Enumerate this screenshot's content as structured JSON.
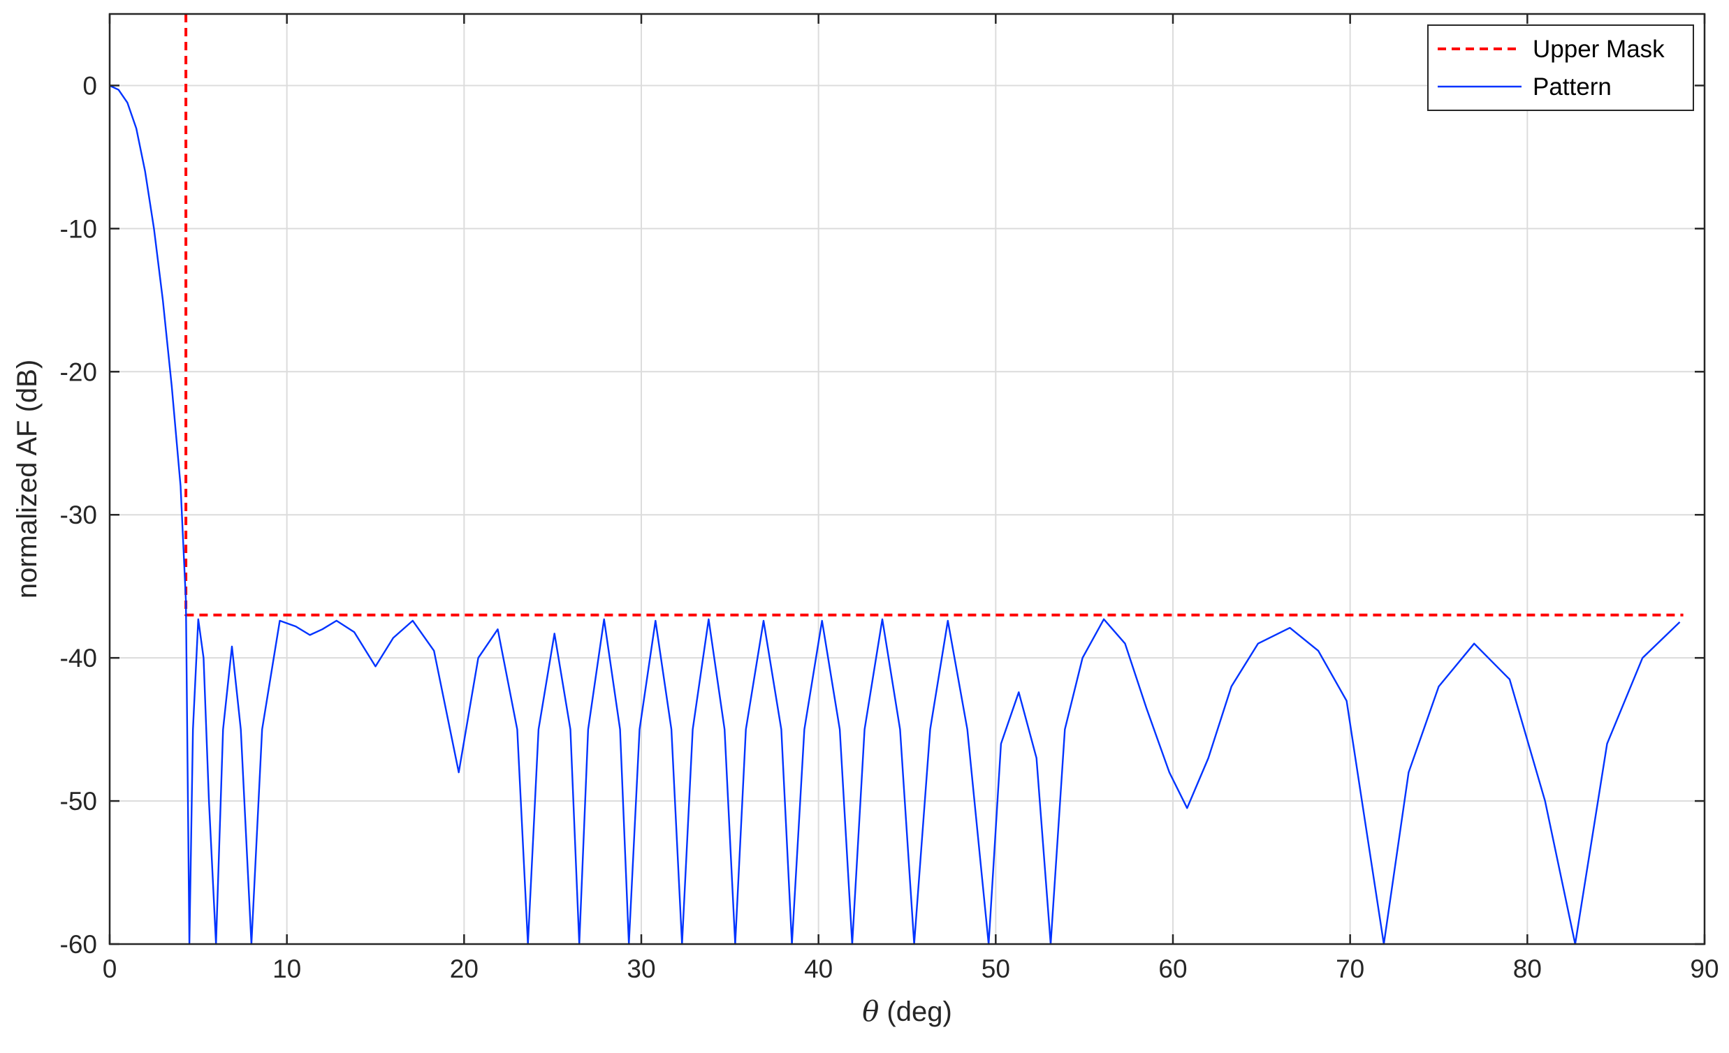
{
  "chart_data": {
    "type": "line",
    "title": "",
    "xlabel": "(deg)",
    "xlabel_symbol": "θ",
    "ylabel": "normalized AF (dB)",
    "xlim": [
      0,
      90
    ],
    "ylim": [
      -60,
      5
    ],
    "xticks": [
      0,
      10,
      20,
      30,
      40,
      50,
      60,
      70,
      80,
      90
    ],
    "yticks": [
      0,
      -10,
      -20,
      -30,
      -40,
      -50,
      -60
    ],
    "xtick_labels": [
      "0",
      "10",
      "20",
      "30",
      "40",
      "50",
      "60",
      "70",
      "80",
      "90"
    ],
    "ytick_labels": [
      "0",
      "-10",
      "-20",
      "-30",
      "-40",
      "-50",
      "-60"
    ],
    "grid": true,
    "legend_position": "top-right",
    "series": [
      {
        "name": "Upper Mask",
        "style": "dashed",
        "color": "#ff0000",
        "x": [
          4.3,
          4.3,
          88.8
        ],
        "y": [
          5,
          -37,
          -37
        ]
      },
      {
        "name": "Pattern",
        "style": "solid",
        "color": "#0033ff",
        "x": [
          0,
          0.5,
          1,
          1.5,
          2,
          2.5,
          3,
          3.5,
          4,
          4.3,
          4.5,
          4.7,
          5,
          5.3,
          5.6,
          6,
          6.4,
          6.9,
          7.4,
          8,
          8.6,
          9.6,
          10.5,
          11.3,
          12,
          12.8,
          13.8,
          15,
          16,
          17.1,
          18.3,
          19.7,
          20.8,
          21.9,
          23,
          23.6,
          24.2,
          25.1,
          26,
          26.5,
          27,
          27.9,
          28.8,
          29.3,
          29.9,
          30.8,
          31.7,
          32.3,
          32.9,
          33.8,
          34.7,
          35.3,
          35.9,
          36.9,
          37.9,
          38.5,
          39.2,
          40.2,
          41.2,
          41.9,
          42.6,
          43.6,
          44.6,
          45.4,
          46.3,
          47.3,
          48.4,
          49.6,
          50.3,
          51.3,
          52.3,
          53.1,
          53.9,
          54.9,
          56.1,
          57.3,
          58.5,
          59.8,
          60.8,
          62,
          63.3,
          64.8,
          66.6,
          68.2,
          69.8,
          71.9,
          73.3,
          75,
          77,
          79,
          81,
          82.7,
          84.5,
          86.5,
          88.6
        ],
        "y": [
          0,
          -0.3,
          -1.2,
          -3,
          -6,
          -10,
          -15,
          -21,
          -28,
          -36,
          -60,
          -45,
          -37.3,
          -40,
          -50,
          -60,
          -45,
          -39.2,
          -45,
          -60,
          -45,
          -37.4,
          -37.8,
          -38.4,
          -38,
          -37.4,
          -38.2,
          -40.6,
          -38.6,
          -37.4,
          -39.5,
          -48,
          -40,
          -38,
          -45,
          -60,
          -45,
          -38.3,
          -45,
          -60,
          -45,
          -37.3,
          -45,
          -60,
          -45,
          -37.4,
          -45,
          -60,
          -45,
          -37.3,
          -45,
          -60,
          -45,
          -37.4,
          -45,
          -60,
          -45,
          -37.4,
          -45,
          -60,
          -45,
          -37.3,
          -45,
          -60,
          -45,
          -37.4,
          -45,
          -60,
          -46,
          -42.4,
          -47,
          -60,
          -45,
          -40,
          -37.3,
          -39,
          -43.5,
          -48,
          -50.5,
          -47,
          -42,
          -39,
          -37.9,
          -39.5,
          -43,
          -60,
          -48,
          -42,
          -39,
          -41.5,
          -50,
          -60,
          -46,
          -40,
          -37.5
        ]
      }
    ]
  }
}
